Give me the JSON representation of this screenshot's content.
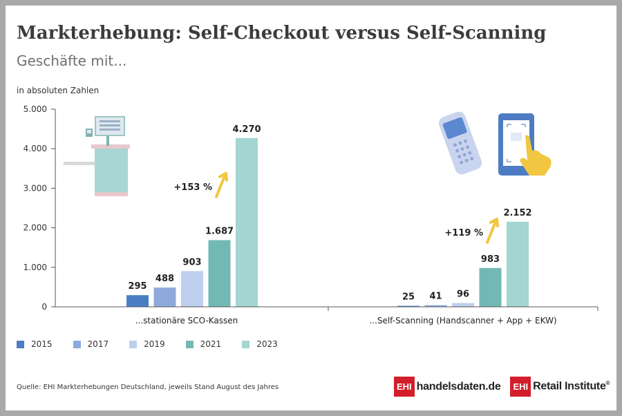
{
  "chart_data": {
    "type": "bar",
    "title": "Markterhebung: Self-Checkout versus Self-Scanning",
    "subtitle": "Geschäfte mit...",
    "ylabel": "in absoluten Zahlen",
    "ylim": [
      0,
      5000
    ],
    "yticks": [
      {
        "value": 0,
        "label": "0"
      },
      {
        "value": 1000,
        "label": "1.000"
      },
      {
        "value": 2000,
        "label": "2.000"
      },
      {
        "value": 3000,
        "label": "3.000"
      },
      {
        "value": 4000,
        "label": "4.000"
      },
      {
        "value": 5000,
        "label": "5.000"
      }
    ],
    "categories": [
      "...stationäre SCO-Kassen",
      "...Self-Scanning (Handscanner + App + EKW)"
    ],
    "series": [
      {
        "name": "2015",
        "color": "#4a7fc4",
        "values": [
          295,
          25
        ],
        "labels": [
          "295",
          "25"
        ]
      },
      {
        "name": "2017",
        "color": "#8eaadc",
        "values": [
          488,
          41
        ],
        "labels": [
          "488",
          "41"
        ]
      },
      {
        "name": "2019",
        "color": "#bfcfee",
        "values": [
          903,
          96
        ],
        "labels": [
          "903",
          "96"
        ]
      },
      {
        "name": "2021",
        "color": "#72b9b5",
        "values": [
          1687,
          983
        ],
        "labels": [
          "1.687",
          "983"
        ]
      },
      {
        "name": "2023",
        "color": "#a3d5d2",
        "values": [
          4270,
          2152
        ],
        "labels": [
          "4.270",
          "2.152"
        ]
      }
    ],
    "annotations": [
      {
        "category": 0,
        "text": "+153 %"
      },
      {
        "category": 1,
        "text": "+119 %"
      }
    ],
    "arrow_color": "#f1c640",
    "legend_position": "bottom-left",
    "grid": false,
    "source": "Quelle: EHI Markterhebungen Deutschland, jeweils Stand August des Jahres"
  },
  "logos": {
    "ehi_mark": "EHI",
    "handelsdaten": "handelsdaten.de",
    "retail_institute": "Retail Institute",
    "registered": "®"
  }
}
